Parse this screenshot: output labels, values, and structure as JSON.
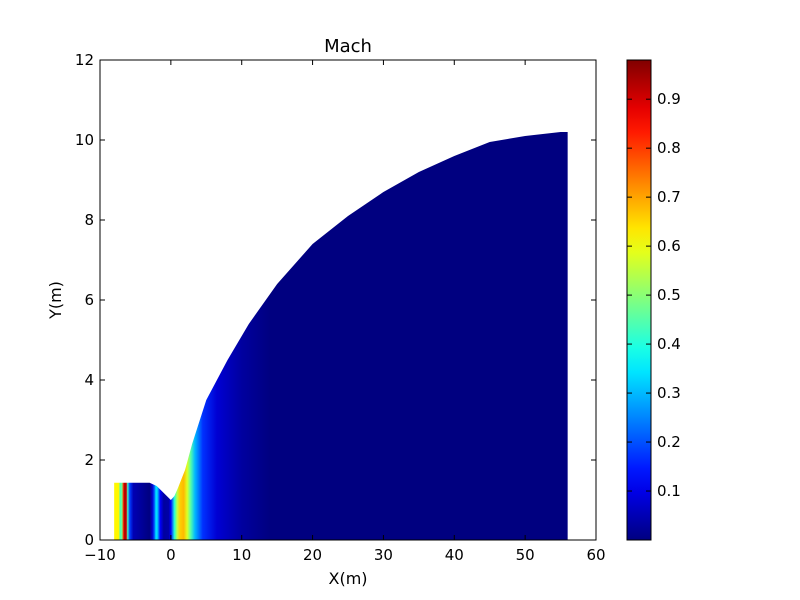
{
  "chart_data": {
    "type": "heatmap",
    "title": "Mach",
    "xlabel": "X(m)",
    "ylabel": "Y(m)",
    "xlim": [
      -10,
      60
    ],
    "ylim": [
      0,
      12
    ],
    "xticks": [
      -10,
      0,
      10,
      20,
      30,
      40,
      50,
      60
    ],
    "yticks": [
      0,
      2,
      4,
      6,
      8,
      10,
      12
    ],
    "xtick_labels": [
      "−10",
      "0",
      "10",
      "20",
      "30",
      "40",
      "50",
      "60"
    ],
    "ytick_labels": [
      "0",
      "2",
      "4",
      "6",
      "8",
      "10",
      "12"
    ],
    "grid": false,
    "colormap": "jet",
    "colorbar": {
      "min": 0.0,
      "max": 0.98,
      "ticks": [
        0.1,
        0.2,
        0.3,
        0.4,
        0.5,
        0.6,
        0.7,
        0.8,
        0.9
      ],
      "tick_labels": [
        "0.1",
        "0.2",
        "0.3",
        "0.4",
        "0.5",
        "0.6",
        "0.7",
        "0.8",
        "0.9"
      ]
    },
    "domain_upper_boundary": [
      [
        -8.0,
        1.43
      ],
      [
        -3.0,
        1.43
      ],
      [
        -2.0,
        1.35
      ],
      [
        0.0,
        1.0
      ],
      [
        0.5,
        1.1
      ],
      [
        1.0,
        1.3
      ],
      [
        2.0,
        1.75
      ],
      [
        3.0,
        2.4
      ],
      [
        5.0,
        3.5
      ],
      [
        8.0,
        4.5
      ],
      [
        11.0,
        5.4
      ],
      [
        15.0,
        6.4
      ],
      [
        20.0,
        7.4
      ],
      [
        25.0,
        8.1
      ],
      [
        30.0,
        8.7
      ],
      [
        35.0,
        9.2
      ],
      [
        40.0,
        9.6
      ],
      [
        45.0,
        9.95
      ],
      [
        50.0,
        10.1
      ],
      [
        55.0,
        10.2
      ],
      [
        56.0,
        10.2
      ]
    ],
    "domain_x_range": [
      -8.0,
      56.0
    ],
    "mach_profile_along_x": [
      [
        -8.0,
        0.62
      ],
      [
        -7.3,
        0.62
      ],
      [
        -7.2,
        0.42
      ],
      [
        -6.9,
        0.48
      ],
      [
        -6.7,
        0.82
      ],
      [
        -6.5,
        0.95
      ],
      [
        -6.3,
        0.9
      ],
      [
        -6.1,
        0.42
      ],
      [
        -5.8,
        0.18
      ],
      [
        -5.3,
        0.05
      ],
      [
        -3.0,
        0.0
      ],
      [
        -2.6,
        0.08
      ],
      [
        -2.3,
        0.22
      ],
      [
        -2.1,
        0.35
      ],
      [
        -1.9,
        0.32
      ],
      [
        -1.5,
        0.12
      ],
      [
        -1.0,
        0.03
      ],
      [
        -0.3,
        0.04
      ],
      [
        0.0,
        0.12
      ],
      [
        0.5,
        0.4
      ],
      [
        0.9,
        0.55
      ],
      [
        1.3,
        0.66
      ],
      [
        1.8,
        0.68
      ],
      [
        2.3,
        0.58
      ],
      [
        2.8,
        0.45
      ],
      [
        3.4,
        0.3
      ],
      [
        4.5,
        0.17
      ],
      [
        6.5,
        0.08
      ],
      [
        10.0,
        0.03
      ],
      [
        14.0,
        0.0
      ],
      [
        56.0,
        0.0
      ]
    ]
  }
}
